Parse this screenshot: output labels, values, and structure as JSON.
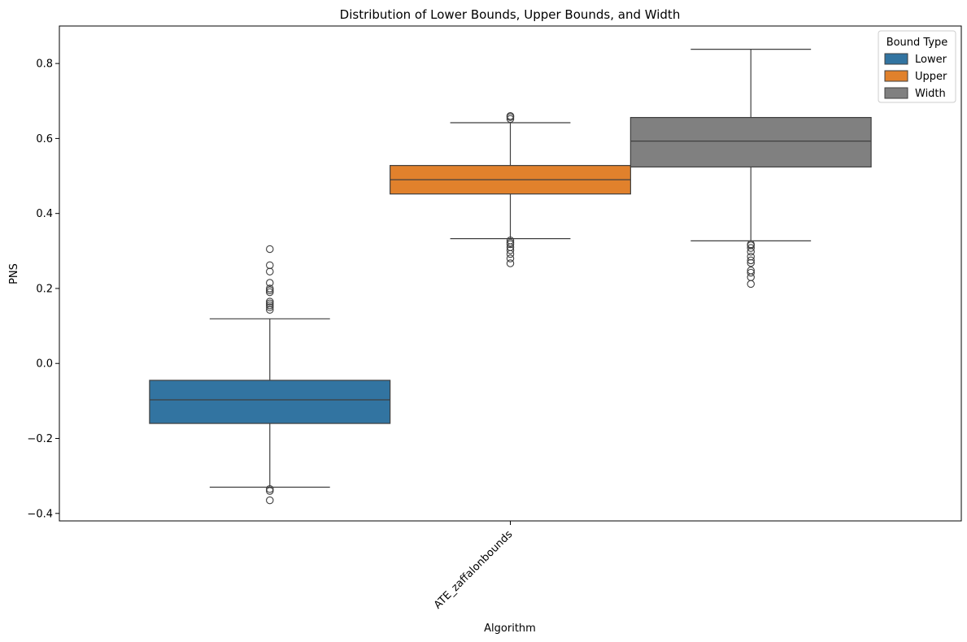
{
  "chart_data": {
    "type": "box",
    "title": "Distribution of Lower Bounds, Upper Bounds, and Width",
    "xlabel": "Algorithm",
    "ylabel": "PNS",
    "categories": [
      "ATE_zaffalonbounds"
    ],
    "ylim": [
      -0.42,
      0.9
    ],
    "yticks": [
      -0.4,
      -0.2,
      0.0,
      0.2,
      0.4,
      0.6,
      0.8
    ],
    "ytick_labels": [
      "−0.4",
      "−0.2",
      "0.0",
      "0.2",
      "0.4",
      "0.6",
      "0.8"
    ],
    "legend": {
      "title": "Bound Type",
      "position": "top-right"
    },
    "series": [
      {
        "name": "Lower",
        "color": "#3274a1",
        "whisker_low": -0.33,
        "q1": -0.16,
        "median": -0.097,
        "q3": -0.045,
        "whisker_high": 0.119,
        "outliers": [
          -0.365,
          -0.34,
          -0.335,
          0.143,
          0.15,
          0.155,
          0.16,
          0.165,
          0.19,
          0.195,
          0.2,
          0.215,
          0.245,
          0.262,
          0.305
        ]
      },
      {
        "name": "Upper",
        "color": "#e1812c",
        "whisker_low": 0.333,
        "q1": 0.452,
        "median": 0.49,
        "q3": 0.528,
        "whisker_high": 0.642,
        "outliers": [
          0.267,
          0.28,
          0.292,
          0.302,
          0.31,
          0.318,
          0.322,
          0.328,
          0.652,
          0.657,
          0.66
        ]
      },
      {
        "name": "Width",
        "color": "#808080",
        "whisker_low": 0.327,
        "q1": 0.524,
        "median": 0.593,
        "q3": 0.656,
        "whisker_high": 0.838,
        "outliers": [
          0.212,
          0.23,
          0.242,
          0.248,
          0.268,
          0.275,
          0.285,
          0.298,
          0.308,
          0.315,
          0.318
        ]
      }
    ]
  }
}
